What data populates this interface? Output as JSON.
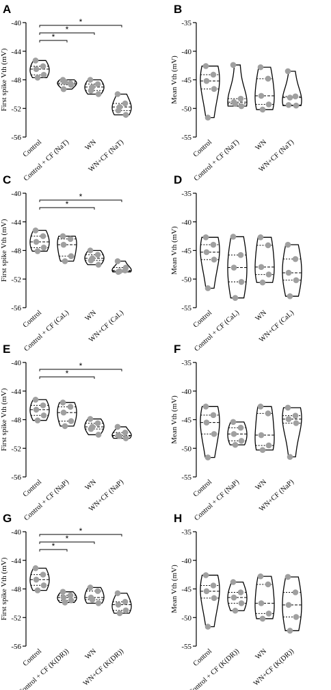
{
  "colors": {
    "point": "#a0a0a0",
    "line": "#000000"
  },
  "chart_data": [
    {
      "panel": "A",
      "type": "violin",
      "ylabel": "First spike Vth (mV)",
      "ylim": [
        -56,
        -40
      ],
      "yticks": [
        -40,
        -44,
        -48,
        -52,
        -56
      ],
      "categories": [
        "Control",
        "Control + CF (NaT)",
        "WN",
        "WN+CF (NaT)"
      ],
      "series": [
        {
          "values": [
            -45.3,
            -46.1,
            -46.5,
            -47.3,
            -47.7
          ]
        },
        {
          "values": [
            -48.0,
            -48.5,
            -49.3,
            -48.7,
            -48.3
          ]
        },
        {
          "values": [
            -48.0,
            -48.6,
            -49.5,
            -50.0,
            -49.0
          ]
        },
        {
          "values": [
            -50.0,
            -51.3,
            -52.3,
            -52.9,
            -51.8
          ]
        }
      ],
      "significance": [
        {
          "from": 0,
          "to": 1,
          "label": "*"
        },
        {
          "from": 0,
          "to": 2,
          "label": "*"
        },
        {
          "from": 0,
          "to": 3,
          "label": "*"
        }
      ]
    },
    {
      "panel": "B",
      "type": "violin",
      "ylabel": "Mean Vth (mV)",
      "ylim": [
        -55,
        -35
      ],
      "yticks": [
        -35,
        -40,
        -45,
        -50,
        -55
      ],
      "categories": [
        "Control",
        "Control + CF (NaT)",
        "WN",
        "WN+CF (NaT)"
      ],
      "series": [
        {
          "values": [
            -42.6,
            -44.1,
            -45.2,
            -46.6,
            -51.6
          ]
        },
        {
          "values": [
            -42.4,
            -48.3,
            -48.9,
            -49.6,
            -49.2
          ]
        },
        {
          "values": [
            -42.8,
            -44.8,
            -47.8,
            -49.3,
            -50.2
          ]
        },
        {
          "values": [
            -43.5,
            -47.9,
            -49.4,
            -49.5,
            -48.1
          ]
        }
      ],
      "significance": []
    },
    {
      "panel": "C",
      "type": "violin",
      "ylabel": "First spike Vth (mV)",
      "ylim": [
        -56,
        -40
      ],
      "yticks": [
        -40,
        -44,
        -48,
        -52,
        -56
      ],
      "categories": [
        "Control",
        "Control + CF (CaL)",
        "WN",
        "WN+CF (CaL)"
      ],
      "series": [
        {
          "values": [
            -45.2,
            -46.0,
            -46.8,
            -47.6,
            -48.1
          ]
        },
        {
          "values": [
            -46.0,
            -46.4,
            -47.2,
            -48.8,
            -49.5
          ]
        },
        {
          "values": [
            -48.0,
            -48.6,
            -49.4,
            -50.0,
            -49.1
          ]
        },
        {
          "values": [
            -49.5,
            -50.8,
            -51.0,
            -50.4,
            -50.9
          ]
        }
      ],
      "significance": [
        {
          "from": 0,
          "to": 2,
          "label": "*"
        },
        {
          "from": 0,
          "to": 3,
          "label": "*"
        }
      ]
    },
    {
      "panel": "D",
      "type": "violin",
      "ylabel": "Mean Vth (mV)",
      "ylim": [
        -55,
        -35
      ],
      "yticks": [
        -35,
        -40,
        -45,
        -50,
        -55
      ],
      "categories": [
        "Control",
        "Control + CF (CaL)",
        "WN",
        "WN+CF (CaL)"
      ],
      "series": [
        {
          "values": [
            -42.7,
            -44.0,
            -45.3,
            -46.6,
            -51.6
          ]
        },
        {
          "values": [
            -42.6,
            -45.8,
            -48.0,
            -50.5,
            -53.3
          ]
        },
        {
          "values": [
            -42.7,
            -44.1,
            -47.9,
            -49.2,
            -50.6
          ]
        },
        {
          "values": [
            -44.0,
            -46.5,
            -48.9,
            -50.2,
            -53.0
          ]
        }
      ],
      "significance": []
    },
    {
      "panel": "E",
      "type": "violin",
      "ylabel": "First spike Vth (mV)",
      "ylim": [
        -56,
        -40
      ],
      "yticks": [
        -40,
        -44,
        -48,
        -52,
        -56
      ],
      "categories": [
        "Control",
        "Control + CF (NaP)",
        "WN",
        "WN+CF (NaP)"
      ],
      "series": [
        {
          "values": [
            -45.2,
            -46.0,
            -46.6,
            -47.4,
            -48.1
          ]
        },
        {
          "values": [
            -45.6,
            -46.2,
            -47.0,
            -48.2,
            -48.9
          ]
        },
        {
          "values": [
            -47.9,
            -48.5,
            -49.3,
            -50.1,
            -49.0
          ]
        },
        {
          "values": [
            -49.0,
            -49.8,
            -50.2,
            -50.6,
            -50.3
          ]
        }
      ],
      "significance": [
        {
          "from": 0,
          "to": 2,
          "label": "*"
        },
        {
          "from": 0,
          "to": 3,
          "label": "*"
        }
      ]
    },
    {
      "panel": "F",
      "type": "violin",
      "ylabel": "Mean Vth (mV)",
      "ylim": [
        -55,
        -35
      ],
      "yticks": [
        -35,
        -40,
        -45,
        -50,
        -55
      ],
      "categories": [
        "Control",
        "Control + CF (NaP)",
        "WN",
        "WN+CF (NaP)"
      ],
      "series": [
        {
          "values": [
            -42.7,
            -44.2,
            -45.5,
            -47.5,
            -51.6
          ]
        },
        {
          "values": [
            -45.4,
            -46.4,
            -47.5,
            -48.7,
            -49.4
          ]
        },
        {
          "values": [
            -42.7,
            -43.9,
            -47.7,
            -49.5,
            -50.3
          ]
        },
        {
          "values": [
            -42.9,
            -44.3,
            -44.9,
            -45.6,
            -51.5
          ]
        }
      ],
      "significance": []
    },
    {
      "panel": "G",
      "type": "violin",
      "ylabel": "First spike Vth (mV)",
      "ylim": [
        -56,
        -40
      ],
      "yticks": [
        -40,
        -44,
        -48,
        -52,
        -56
      ],
      "categories": [
        "Control",
        "Control + CF (K(DR))",
        "WN",
        "WN+CF (K(DR))"
      ],
      "series": [
        {
          "values": [
            -45.1,
            -46.0,
            -46.7,
            -47.5,
            -48.2
          ]
        },
        {
          "values": [
            -48.4,
            -48.9,
            -49.2,
            -49.6,
            -49.9
          ]
        },
        {
          "values": [
            -47.8,
            -48.3,
            -49.2,
            -50.0,
            -49.5
          ]
        },
        {
          "values": [
            -48.6,
            -49.8,
            -50.2,
            -51.0,
            -51.4
          ]
        }
      ],
      "significance": [
        {
          "from": 0,
          "to": 1,
          "label": "*"
        },
        {
          "from": 0,
          "to": 2,
          "label": "*"
        },
        {
          "from": 0,
          "to": 3,
          "label": "*"
        }
      ]
    },
    {
      "panel": "H",
      "type": "violin",
      "ylabel": "Mean Vth (mV)",
      "ylim": [
        -55,
        -35
      ],
      "yticks": [
        -35,
        -40,
        -45,
        -50,
        -55
      ],
      "categories": [
        "Control",
        "Control + CF (K(DR))",
        "WN",
        "WN+CF (K(DR))"
      ],
      "series": [
        {
          "values": [
            -42.6,
            -44.4,
            -45.4,
            -46.6,
            -51.6
          ]
        },
        {
          "values": [
            -43.8,
            -45.6,
            -46.5,
            -47.5,
            -48.8
          ]
        },
        {
          "values": [
            -42.8,
            -44.2,
            -47.5,
            -49.3,
            -50.2
          ]
        },
        {
          "values": [
            -42.9,
            -45.6,
            -47.8,
            -49.9,
            -52.3
          ]
        }
      ],
      "significance": []
    }
  ]
}
